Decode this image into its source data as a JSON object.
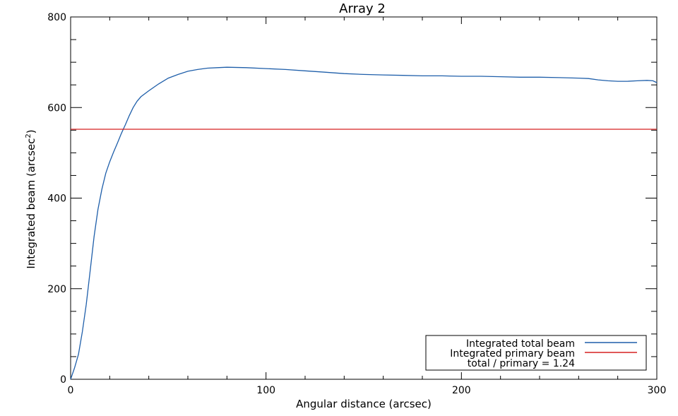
{
  "chart_data": {
    "type": "line",
    "title": "Array 2",
    "xlabel": "Angular distance (arcsec)",
    "ylabel": "Integrated beam (arcsec",
    "ylabel_superscript": "2",
    "ylabel_close": ")",
    "xlim": [
      0,
      300
    ],
    "ylim": [
      0,
      800
    ],
    "x_ticks": [
      0,
      100,
      200,
      300
    ],
    "x_tick_labels": [
      "0",
      "100",
      "200",
      "300"
    ],
    "y_ticks": [
      0,
      200,
      400,
      600,
      800
    ],
    "y_tick_labels": [
      "0",
      "200",
      "400",
      "600",
      "800"
    ],
    "grid": false,
    "legend_position": "bottom-right",
    "series": [
      {
        "name": "Integrated total beam",
        "color": "#1f5faa",
        "x": [
          0,
          2,
          4,
          6,
          8,
          10,
          12,
          14,
          16,
          18,
          20,
          22,
          24,
          26,
          28,
          30,
          32,
          34,
          36,
          40,
          45,
          50,
          55,
          60,
          65,
          70,
          75,
          80,
          90,
          100,
          110,
          120,
          130,
          140,
          150,
          160,
          170,
          180,
          190,
          200,
          210,
          220,
          230,
          240,
          250,
          260,
          265,
          270,
          275,
          280,
          285,
          290,
          295,
          298,
          300
        ],
        "y": [
          0,
          25,
          55,
          105,
          165,
          240,
          315,
          375,
          420,
          455,
          480,
          502,
          522,
          543,
          562,
          582,
          600,
          614,
          624,
          637,
          652,
          665,
          673,
          680,
          684,
          687,
          688,
          689,
          688,
          686,
          684,
          681,
          678,
          675,
          673,
          672,
          671,
          670,
          670,
          669,
          669,
          668,
          667,
          667,
          666,
          665,
          664,
          661,
          659,
          658,
          658,
          659,
          660,
          659,
          655
        ]
      },
      {
        "name": "Integrated primary beam",
        "color": "#d62020",
        "x": [
          0,
          300
        ],
        "y": [
          552,
          552
        ]
      }
    ],
    "annotations": [
      "total / primary = 1.24"
    ]
  }
}
